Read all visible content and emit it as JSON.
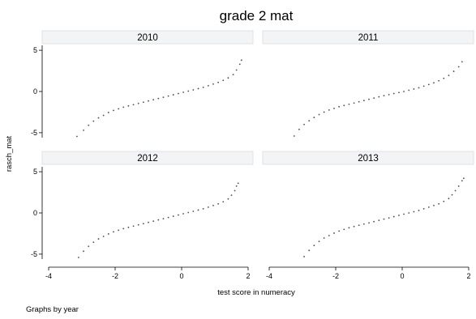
{
  "chart_data": {
    "type": "scatter",
    "title": "grade 2 mat",
    "xlabel": "test score in numeracy",
    "ylabel": "rasch_mat",
    "note": "Graphs by year",
    "xlim": [
      -4.0,
      2.0
    ],
    "ylim": [
      -5.6,
      5.6
    ],
    "xticks": [
      -4,
      -2,
      0,
      2
    ],
    "xtick_labels": [
      "-4",
      "-2",
      "0",
      "2"
    ],
    "yticks": [
      -5,
      0,
      5
    ],
    "ytick_labels": [
      "-5",
      "0",
      "5"
    ],
    "grid": false,
    "marker_color": "#4a4a4a",
    "panels": [
      {
        "name": "2010",
        "points": [
          [
            -3.15,
            -5.45
          ],
          [
            -2.95,
            -4.7
          ],
          [
            -2.8,
            -4.1
          ],
          [
            -2.65,
            -3.6
          ],
          [
            -2.5,
            -3.2
          ],
          [
            -2.35,
            -2.9
          ],
          [
            -2.2,
            -2.55
          ],
          [
            -2.05,
            -2.3
          ],
          [
            -1.9,
            -2.1
          ],
          [
            -1.75,
            -1.9
          ],
          [
            -1.6,
            -1.75
          ],
          [
            -1.45,
            -1.6
          ],
          [
            -1.3,
            -1.45
          ],
          [
            -1.15,
            -1.3
          ],
          [
            -1.0,
            -1.15
          ],
          [
            -0.85,
            -1.0
          ],
          [
            -0.7,
            -0.85
          ],
          [
            -0.55,
            -0.7
          ],
          [
            -0.4,
            -0.55
          ],
          [
            -0.25,
            -0.4
          ],
          [
            -0.1,
            -0.25
          ],
          [
            0.05,
            -0.1
          ],
          [
            0.2,
            0.05
          ],
          [
            0.35,
            0.2
          ],
          [
            0.5,
            0.35
          ],
          [
            0.65,
            0.5
          ],
          [
            0.8,
            0.7
          ],
          [
            0.95,
            0.9
          ],
          [
            1.1,
            1.1
          ],
          [
            1.25,
            1.35
          ],
          [
            1.4,
            1.65
          ],
          [
            1.55,
            2.05
          ],
          [
            1.65,
            2.6
          ],
          [
            1.75,
            3.3
          ],
          [
            1.8,
            3.8
          ]
        ]
      },
      {
        "name": "2011",
        "points": [
          [
            -3.25,
            -5.4
          ],
          [
            -3.1,
            -4.6
          ],
          [
            -2.95,
            -4.0
          ],
          [
            -2.8,
            -3.55
          ],
          [
            -2.65,
            -3.15
          ],
          [
            -2.5,
            -2.8
          ],
          [
            -2.35,
            -2.5
          ],
          [
            -2.2,
            -2.25
          ],
          [
            -2.05,
            -2.05
          ],
          [
            -1.9,
            -1.85
          ],
          [
            -1.75,
            -1.7
          ],
          [
            -1.6,
            -1.55
          ],
          [
            -1.45,
            -1.4
          ],
          [
            -1.3,
            -1.25
          ],
          [
            -1.15,
            -1.1
          ],
          [
            -1.0,
            -0.95
          ],
          [
            -0.85,
            -0.8
          ],
          [
            -0.7,
            -0.65
          ],
          [
            -0.55,
            -0.5
          ],
          [
            -0.4,
            -0.38
          ],
          [
            -0.25,
            -0.25
          ],
          [
            -0.1,
            -0.12
          ],
          [
            0.05,
            0.0
          ],
          [
            0.2,
            0.15
          ],
          [
            0.35,
            0.3
          ],
          [
            0.5,
            0.45
          ],
          [
            0.65,
            0.65
          ],
          [
            0.8,
            0.85
          ],
          [
            0.95,
            1.05
          ],
          [
            1.1,
            1.3
          ],
          [
            1.25,
            1.6
          ],
          [
            1.4,
            1.95
          ],
          [
            1.55,
            2.45
          ],
          [
            1.7,
            3.0
          ],
          [
            1.8,
            3.6
          ]
        ]
      },
      {
        "name": "2012",
        "points": [
          [
            -3.1,
            -5.4
          ],
          [
            -2.95,
            -4.65
          ],
          [
            -2.8,
            -4.05
          ],
          [
            -2.65,
            -3.55
          ],
          [
            -2.5,
            -3.15
          ],
          [
            -2.35,
            -2.85
          ],
          [
            -2.2,
            -2.55
          ],
          [
            -2.05,
            -2.3
          ],
          [
            -1.9,
            -2.1
          ],
          [
            -1.75,
            -1.9
          ],
          [
            -1.6,
            -1.75
          ],
          [
            -1.45,
            -1.6
          ],
          [
            -1.3,
            -1.45
          ],
          [
            -1.15,
            -1.3
          ],
          [
            -1.0,
            -1.15
          ],
          [
            -0.85,
            -1.0
          ],
          [
            -0.7,
            -0.85
          ],
          [
            -0.55,
            -0.7
          ],
          [
            -0.4,
            -0.55
          ],
          [
            -0.25,
            -0.4
          ],
          [
            -0.1,
            -0.25
          ],
          [
            0.05,
            -0.1
          ],
          [
            0.2,
            0.05
          ],
          [
            0.35,
            0.2
          ],
          [
            0.5,
            0.35
          ],
          [
            0.65,
            0.5
          ],
          [
            0.8,
            0.7
          ],
          [
            0.95,
            0.9
          ],
          [
            1.1,
            1.1
          ],
          [
            1.25,
            1.35
          ],
          [
            1.4,
            1.7
          ],
          [
            1.5,
            2.15
          ],
          [
            1.6,
            2.7
          ],
          [
            1.65,
            3.25
          ],
          [
            1.7,
            3.6
          ]
        ]
      },
      {
        "name": "2013",
        "points": [
          [
            -2.95,
            -5.3
          ],
          [
            -2.8,
            -4.55
          ],
          [
            -2.65,
            -3.95
          ],
          [
            -2.5,
            -3.45
          ],
          [
            -2.35,
            -3.05
          ],
          [
            -2.2,
            -2.75
          ],
          [
            -2.05,
            -2.45
          ],
          [
            -1.9,
            -2.2
          ],
          [
            -1.75,
            -2.0
          ],
          [
            -1.6,
            -1.8
          ],
          [
            -1.45,
            -1.65
          ],
          [
            -1.3,
            -1.5
          ],
          [
            -1.15,
            -1.35
          ],
          [
            -1.0,
            -1.2
          ],
          [
            -0.85,
            -1.05
          ],
          [
            -0.7,
            -0.9
          ],
          [
            -0.55,
            -0.75
          ],
          [
            -0.4,
            -0.6
          ],
          [
            -0.25,
            -0.45
          ],
          [
            -0.1,
            -0.3
          ],
          [
            0.05,
            -0.15
          ],
          [
            0.2,
            0.0
          ],
          [
            0.35,
            0.15
          ],
          [
            0.5,
            0.3
          ],
          [
            0.65,
            0.5
          ],
          [
            0.8,
            0.7
          ],
          [
            0.95,
            0.9
          ],
          [
            1.1,
            1.1
          ],
          [
            1.25,
            1.4
          ],
          [
            1.4,
            1.75
          ],
          [
            1.5,
            2.2
          ],
          [
            1.6,
            2.7
          ],
          [
            1.7,
            3.25
          ],
          [
            1.8,
            3.9
          ],
          [
            1.85,
            4.2
          ]
        ]
      }
    ]
  }
}
